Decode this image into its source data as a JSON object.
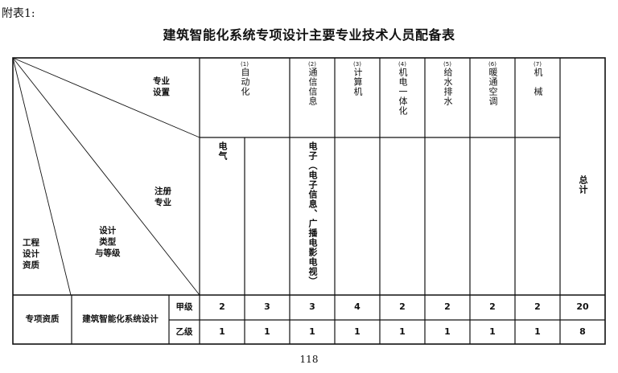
{
  "annex_label": "附表1:",
  "title": "建筑智能化系统专项设计主要专业技术人员配备表",
  "corner_labels": {
    "major_setting": "专业\n设置",
    "registered_major": "注册\n专业",
    "design_type_grade": "设计\n类型\n与等级",
    "engineering_qualification": "工程\n设计\n资质"
  },
  "columns": [
    {
      "num": "(1)",
      "name": "自动化"
    },
    {
      "num": "(2)",
      "name": "通信信息"
    },
    {
      "num": "(3)",
      "name": "计算机"
    },
    {
      "num": "(4)",
      "name": "机电一体化"
    },
    {
      "num": "(5)",
      "name": "给水排水"
    },
    {
      "num": "(6)",
      "name": "暖通空调"
    },
    {
      "num": "(7)",
      "name": "机　械"
    }
  ],
  "registered": [
    "电气",
    "",
    "电子（电子信息、广播电影电视）"
  ],
  "total_label": "总计",
  "row_group": {
    "qualification": "专项资质",
    "design": "建筑智能化系统设计"
  },
  "rows": [
    {
      "grade": "甲级",
      "values": [
        "2",
        "3",
        "3",
        "4",
        "2",
        "2",
        "2",
        "2"
      ],
      "total": "20"
    },
    {
      "grade": "乙级",
      "values": [
        "1",
        "1",
        "1",
        "1",
        "1",
        "1",
        "1",
        "1"
      ],
      "total": "8"
    }
  ],
  "page_number": "118"
}
